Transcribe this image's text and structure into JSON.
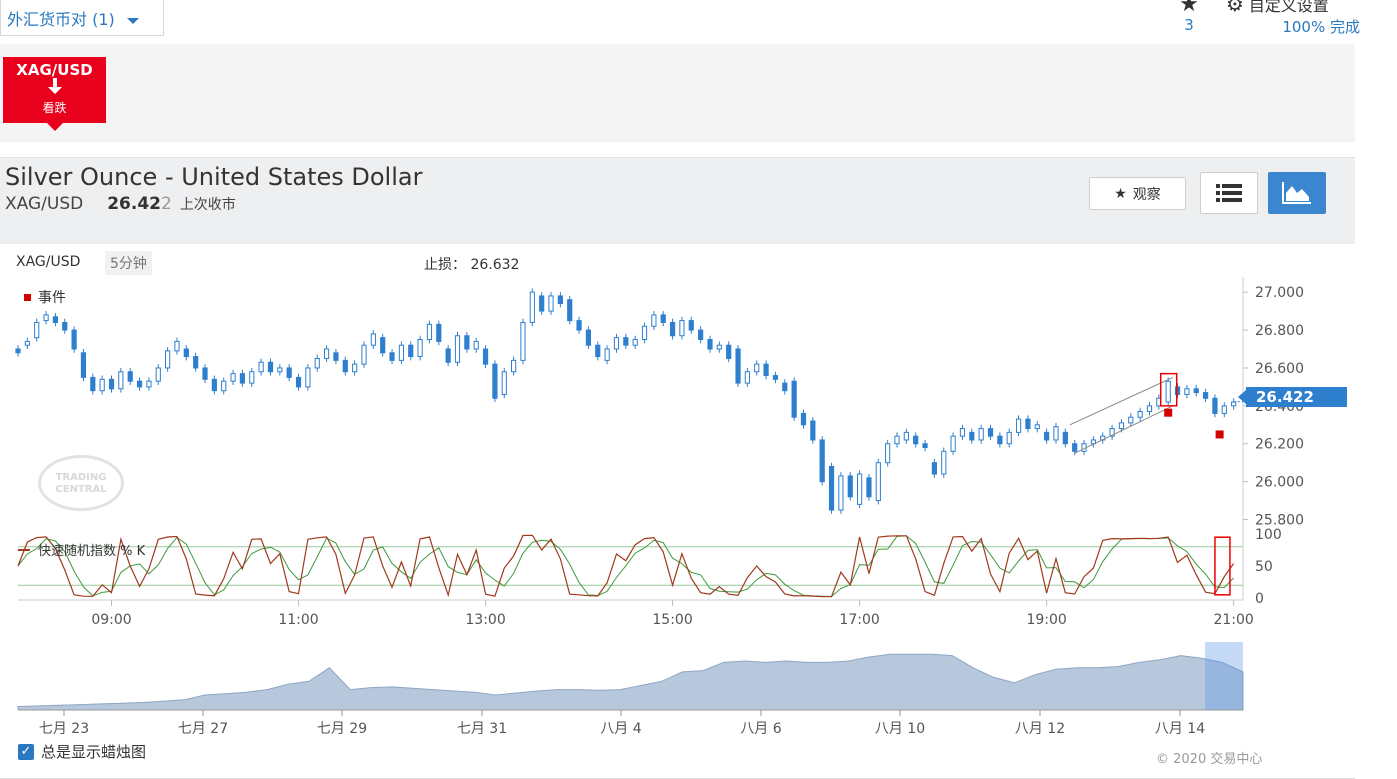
{
  "topbar": {
    "pair_selector": "外汇货币对 (1)",
    "watch_count": "3",
    "settings_label": "自定义设置",
    "settings_progress": "100% 完成"
  },
  "signal": {
    "symbol": "XAG/USD",
    "direction": "看跌",
    "color": "#e8001c"
  },
  "instrument": {
    "title": "Silver Ounce - United States Dollar",
    "symbol": "XAG/USD",
    "price_main": "26.42",
    "price_last_digit": "2",
    "price_note": "上次收市"
  },
  "buttons": {
    "watch_label": "观察"
  },
  "chart_header": {
    "symbol": "XAG/USD",
    "timeframe": "5分钟",
    "stop_loss_label": "止损：",
    "stop_loss_value": "26.632",
    "events_label": "事件"
  },
  "stochastic_label": "快速随机指数 % K",
  "current_price_label": "26.422",
  "chart_data": {
    "type": "candlestick",
    "y_ticks": [
      "27.000",
      "26.800",
      "26.600",
      "26.400",
      "26.200",
      "26.000",
      "25.800"
    ],
    "ylim": [
      25.75,
      27.08
    ],
    "x_ticks": [
      "09:00",
      "11:00",
      "13:00",
      "15:00",
      "17:00",
      "19:00",
      "21:00"
    ],
    "x_range_hours": [
      8.0,
      21.1
    ],
    "current_price": 26.422,
    "stop_loss": 26.632,
    "candles": [
      [
        8.0,
        26.7,
        26.68
      ],
      [
        8.1,
        26.72,
        26.74
      ],
      [
        8.2,
        26.76,
        26.84
      ],
      [
        8.3,
        26.85,
        26.88
      ],
      [
        8.4,
        26.87,
        26.84
      ],
      [
        8.5,
        26.84,
        26.8
      ],
      [
        8.6,
        26.8,
        26.7
      ],
      [
        8.7,
        26.68,
        26.55
      ],
      [
        8.8,
        26.55,
        26.48
      ],
      [
        8.9,
        26.48,
        26.54
      ],
      [
        9.0,
        26.54,
        26.49
      ],
      [
        9.1,
        26.49,
        26.58
      ],
      [
        9.2,
        26.58,
        26.53
      ],
      [
        9.3,
        26.53,
        26.5
      ],
      [
        9.4,
        26.5,
        26.53
      ],
      [
        9.5,
        26.53,
        26.6
      ],
      [
        9.6,
        26.6,
        26.69
      ],
      [
        9.7,
        26.69,
        26.74
      ],
      [
        9.8,
        26.7,
        26.66
      ],
      [
        9.9,
        26.66,
        26.6
      ],
      [
        10.0,
        26.6,
        26.54
      ],
      [
        10.1,
        26.54,
        26.48
      ],
      [
        10.2,
        26.48,
        26.53
      ],
      [
        10.3,
        26.53,
        26.57
      ],
      [
        10.4,
        26.57,
        26.52
      ],
      [
        10.5,
        26.52,
        26.58
      ],
      [
        10.6,
        26.58,
        26.63
      ],
      [
        10.7,
        26.63,
        26.58
      ],
      [
        10.8,
        26.58,
        26.6
      ],
      [
        10.9,
        26.6,
        26.55
      ],
      [
        11.0,
        26.55,
        26.5
      ],
      [
        11.1,
        26.5,
        26.6
      ],
      [
        11.2,
        26.6,
        26.65
      ],
      [
        11.3,
        26.65,
        26.7
      ],
      [
        11.4,
        26.68,
        26.64
      ],
      [
        11.5,
        26.64,
        26.58
      ],
      [
        11.6,
        26.58,
        26.62
      ],
      [
        11.7,
        26.62,
        26.72
      ],
      [
        11.8,
        26.72,
        26.78
      ],
      [
        11.9,
        26.76,
        26.68
      ],
      [
        12.0,
        26.68,
        26.64
      ],
      [
        12.1,
        26.64,
        26.72
      ],
      [
        12.2,
        26.72,
        26.66
      ],
      [
        12.3,
        26.66,
        26.75
      ],
      [
        12.4,
        26.75,
        26.83
      ],
      [
        12.5,
        26.83,
        26.74
      ],
      [
        12.6,
        26.7,
        26.63
      ],
      [
        12.7,
        26.63,
        26.77
      ],
      [
        12.8,
        26.77,
        26.7
      ],
      [
        12.9,
        26.7,
        26.74
      ],
      [
        13.0,
        26.7,
        26.62
      ],
      [
        13.1,
        26.62,
        26.44
      ],
      [
        13.2,
        26.46,
        26.58
      ],
      [
        13.3,
        26.58,
        26.64
      ],
      [
        13.4,
        26.64,
        26.84
      ],
      [
        13.5,
        26.84,
        27.0
      ],
      [
        13.6,
        26.98,
        26.9
      ],
      [
        13.7,
        26.9,
        26.98
      ],
      [
        13.8,
        26.98,
        26.94
      ],
      [
        13.9,
        26.96,
        26.85
      ],
      [
        14.0,
        26.85,
        26.8
      ],
      [
        14.1,
        26.8,
        26.72
      ],
      [
        14.2,
        26.72,
        26.66
      ],
      [
        14.3,
        26.64,
        26.7
      ],
      [
        14.4,
        26.7,
        26.76
      ],
      [
        14.5,
        26.76,
        26.72
      ],
      [
        14.6,
        26.72,
        26.75
      ],
      [
        14.7,
        26.75,
        26.82
      ],
      [
        14.8,
        26.82,
        26.88
      ],
      [
        14.9,
        26.88,
        26.84
      ],
      [
        15.0,
        26.84,
        26.77
      ],
      [
        15.1,
        26.77,
        26.85
      ],
      [
        15.2,
        26.85,
        26.8
      ],
      [
        15.3,
        26.8,
        26.75
      ],
      [
        15.4,
        26.75,
        26.7
      ],
      [
        15.5,
        26.7,
        26.72
      ],
      [
        15.6,
        26.72,
        26.65
      ],
      [
        15.7,
        26.7,
        26.52
      ],
      [
        15.8,
        26.52,
        26.58
      ],
      [
        15.9,
        26.58,
        26.62
      ],
      [
        16.0,
        26.62,
        26.56
      ],
      [
        16.1,
        26.56,
        26.54
      ],
      [
        16.2,
        26.52,
        26.48
      ],
      [
        16.3,
        26.53,
        26.34
      ],
      [
        16.4,
        26.36,
        26.3
      ],
      [
        16.5,
        26.32,
        26.22
      ],
      [
        16.6,
        26.22,
        26.0
      ],
      [
        16.7,
        26.08,
        25.85
      ],
      [
        16.8,
        25.85,
        26.03
      ],
      [
        16.9,
        26.03,
        25.92
      ],
      [
        17.0,
        25.88,
        26.04
      ],
      [
        17.1,
        26.02,
        25.92
      ],
      [
        17.2,
        25.9,
        26.1
      ],
      [
        17.3,
        26.1,
        26.2
      ],
      [
        17.4,
        26.2,
        26.24
      ],
      [
        17.5,
        26.22,
        26.26
      ],
      [
        17.6,
        26.24,
        26.2
      ],
      [
        17.7,
        26.2,
        26.18
      ],
      [
        17.8,
        26.1,
        26.04
      ],
      [
        17.9,
        26.04,
        26.16
      ],
      [
        18.0,
        26.16,
        26.24
      ],
      [
        18.1,
        26.24,
        26.28
      ],
      [
        18.2,
        26.26,
        26.22
      ],
      [
        18.3,
        26.22,
        26.28
      ],
      [
        18.4,
        26.28,
        26.24
      ],
      [
        18.5,
        26.24,
        26.2
      ],
      [
        18.6,
        26.2,
        26.26
      ],
      [
        18.7,
        26.26,
        26.33
      ],
      [
        18.8,
        26.33,
        26.28
      ],
      [
        18.9,
        26.28,
        26.3
      ],
      [
        19.0,
        26.26,
        26.22
      ],
      [
        19.1,
        26.22,
        26.29
      ],
      [
        19.2,
        26.26,
        26.2
      ],
      [
        19.3,
        26.2,
        26.16
      ],
      [
        19.4,
        26.16,
        26.2
      ],
      [
        19.5,
        26.2,
        26.22
      ],
      [
        19.6,
        26.22,
        26.24
      ],
      [
        19.7,
        26.24,
        26.28
      ],
      [
        19.8,
        26.28,
        26.31
      ],
      [
        19.9,
        26.31,
        26.34
      ],
      [
        20.0,
        26.34,
        26.37
      ],
      [
        20.1,
        26.37,
        26.4
      ],
      [
        20.2,
        26.4,
        26.44
      ],
      [
        20.3,
        26.42,
        26.53
      ],
      [
        20.4,
        26.5,
        26.46
      ],
      [
        20.5,
        26.46,
        26.49
      ],
      [
        20.6,
        26.49,
        26.47
      ],
      [
        20.7,
        26.47,
        26.44
      ],
      [
        20.8,
        26.44,
        26.36
      ],
      [
        20.9,
        26.36,
        26.4
      ],
      [
        21.0,
        26.4,
        26.42
      ]
    ],
    "stochastic": {
      "y_ticks": [
        "100",
        "50",
        "0"
      ],
      "ylim": [
        0,
        100
      ],
      "bands": [
        80,
        20
      ]
    },
    "navigator": {
      "x_ticks": [
        "七月 23",
        "七月 27",
        "七月 29",
        "七月 31",
        "八月 4",
        "八月 6",
        "八月 10",
        "八月 12",
        "八月 14"
      ]
    }
  },
  "footer": {
    "always_show_label": "总是显示蜡烛图",
    "copyright": "© 2020 交易中心"
  },
  "watermark": "TRADING CENTRAL"
}
